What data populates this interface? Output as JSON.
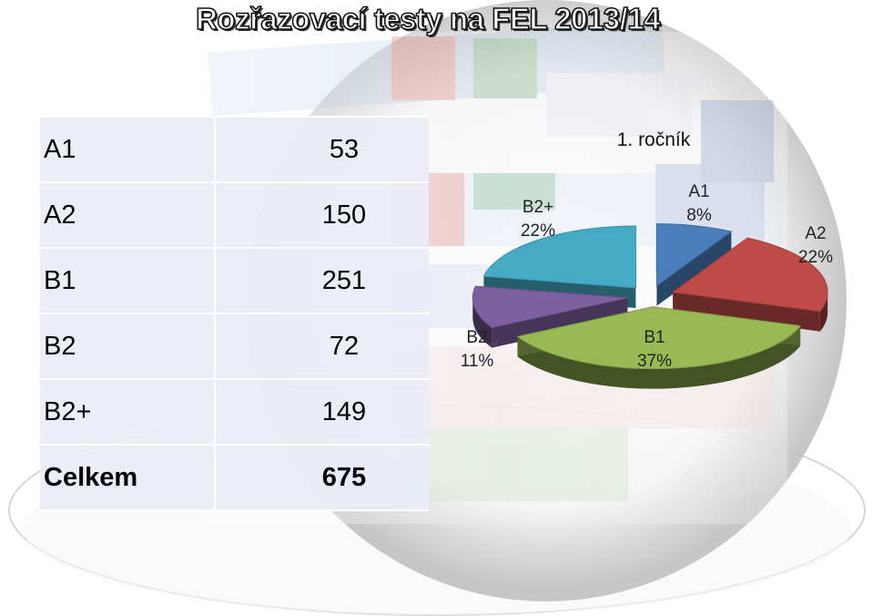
{
  "page": {
    "title": "Rozřazovací testy na FEL 2013/14"
  },
  "table": {
    "rows": [
      {
        "level": "A1",
        "count": "53"
      },
      {
        "level": "A2",
        "count": "150"
      },
      {
        "level": "B1",
        "count": "251"
      },
      {
        "level": "B2",
        "count": "72"
      },
      {
        "level": "B2+",
        "count": "149"
      }
    ],
    "total": {
      "label": "Celkem",
      "count": "675"
    }
  },
  "chart_data": {
    "type": "pie",
    "title": "1. ročník",
    "labels": [
      "A1",
      "A2",
      "B1",
      "B2",
      "B2+"
    ],
    "values": [
      8,
      22,
      37,
      11,
      22
    ],
    "value_labels": [
      "8%",
      "22%",
      "37%",
      "11%",
      "22%"
    ],
    "colors": [
      "#4a7ebb",
      "#be4b48",
      "#98b954",
      "#7d60a0",
      "#46aac5"
    ],
    "legend": "none",
    "style": "3d-exploded"
  }
}
